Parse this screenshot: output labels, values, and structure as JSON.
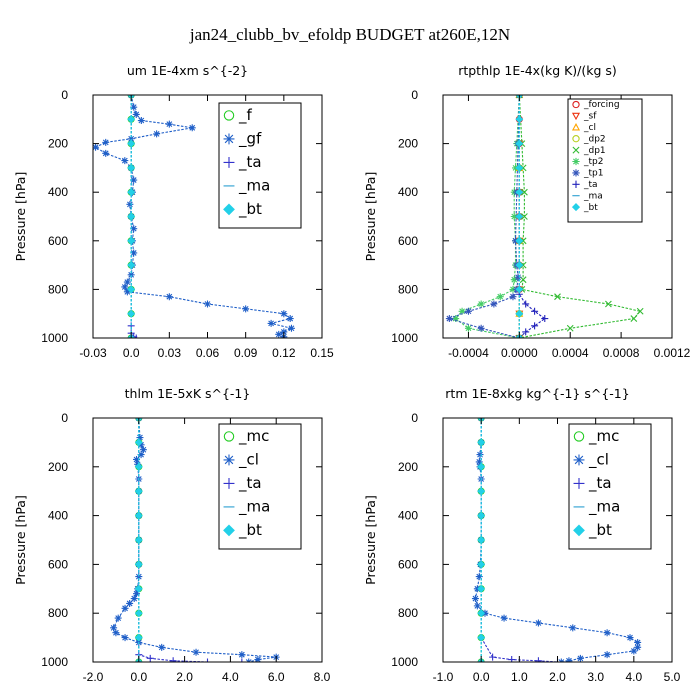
{
  "title": "jan24_clubb_bv_efoldp  BUDGET at260E,12N",
  "chart_data": [
    {
      "type": "line",
      "title": "um   1E-4xm s^{-2}",
      "ylabel": "Pressure [hPa]",
      "xlim": [
        -0.03,
        0.15
      ],
      "ylim": [
        1000,
        0
      ],
      "xticks": [
        "-0.03",
        "0.0",
        "0.03",
        "0.06",
        "0.09",
        "0.12",
        "0.15"
      ],
      "xtick_values": [
        -0.03,
        0,
        0.03,
        0.06,
        0.09,
        0.12,
        0.15
      ],
      "yticks": [
        "0",
        "200",
        "400",
        "600",
        "800",
        "1000"
      ],
      "ytick_values": [
        0,
        200,
        400,
        600,
        800,
        1000
      ],
      "legend": [
        "_f",
        "_gf",
        "_ta",
        "_ma",
        "_bt"
      ],
      "series": [
        {
          "name": "_f",
          "color": "#22cc22",
          "marker": "o",
          "x": [
            0,
            0,
            0,
            0,
            0,
            0,
            0,
            0,
            0,
            0,
            0
          ],
          "y": [
            0,
            100,
            200,
            300,
            400,
            500,
            600,
            700,
            800,
            900,
            1000
          ]
        },
        {
          "name": "_gf",
          "color": "#1f5fc8",
          "marker": "star",
          "x": [
            0,
            0.002,
            0.004,
            0.008,
            0.03,
            0.048,
            0.02,
            0.0,
            -0.02,
            -0.028,
            -0.02,
            -0.005,
            0.0,
            0.002,
            0.001,
            -0.001,
            0.0,
            0.002,
            0.001,
            0.002,
            0.001,
            0.0,
            -0.003,
            -0.005,
            -0.003,
            0.03,
            0.06,
            0.09,
            0.12,
            0.125,
            0.11,
            0.126,
            0.12,
            0.116,
            0.12
          ],
          "y": [
            0,
            50,
            80,
            105,
            120,
            135,
            160,
            180,
            195,
            215,
            240,
            270,
            300,
            350,
            400,
            450,
            500,
            550,
            600,
            650,
            700,
            740,
            770,
            790,
            810,
            830,
            860,
            880,
            900,
            920,
            940,
            960,
            975,
            985,
            995
          ]
        },
        {
          "name": "_ta",
          "color": "#3333cc",
          "marker": "+",
          "x": [
            0,
            0,
            0,
            0,
            0,
            0,
            0,
            0,
            0.002,
            0.004
          ],
          "y": [
            0,
            200,
            400,
            600,
            800,
            900,
            950,
            980,
            995,
            1000
          ]
        },
        {
          "name": "_ma",
          "color": "#2a9fd0",
          "marker": "dash",
          "x": [
            0,
            0,
            0,
            0,
            0,
            0,
            0
          ],
          "y": [
            0,
            200,
            400,
            600,
            800,
            900,
            1000
          ]
        },
        {
          "name": "_bt",
          "color": "#22d0e8",
          "marker": "diamond",
          "x": [
            0,
            0,
            0,
            0,
            0,
            0,
            0,
            0,
            0,
            0,
            0
          ],
          "y": [
            0,
            100,
            200,
            300,
            400,
            500,
            600,
            700,
            800,
            900,
            1000
          ]
        }
      ]
    },
    {
      "type": "line",
      "title": "rtpthlp   1E-4x(kg K)/(kg s)",
      "ylabel": "Pressure [hPa]",
      "xlim": [
        -0.0006,
        0.0012
      ],
      "ylim": [
        1000,
        0
      ],
      "xticks": [
        "-0.0004",
        "0.0000",
        "0.0004",
        "0.0008",
        "0.0012"
      ],
      "xtick_values": [
        -0.0004,
        0,
        0.0004,
        0.0008,
        0.0012
      ],
      "yticks": [
        "0",
        "200",
        "400",
        "600",
        "800",
        "1000"
      ],
      "ytick_values": [
        0,
        200,
        400,
        600,
        800,
        1000
      ],
      "legend": [
        "_forcing",
        "_sf",
        "_cl",
        "_dp2",
        "_dp1",
        "_tp2",
        "_tp1",
        "_ta",
        "_ma",
        "_bt"
      ],
      "series": [
        {
          "name": "_forcing",
          "color": "#dd2222",
          "marker": "o",
          "x": [
            0,
            0,
            0,
            0,
            0,
            0,
            0,
            0,
            0,
            0,
            0
          ],
          "y": [
            0,
            100,
            200,
            300,
            400,
            500,
            600,
            700,
            800,
            900,
            1000
          ]
        },
        {
          "name": "_sf",
          "color": "#ee3311",
          "marker": "v",
          "x": [
            0,
            0,
            0,
            0,
            0,
            0,
            0
          ],
          "y": [
            0,
            200,
            400,
            600,
            800,
            900,
            1000
          ]
        },
        {
          "name": "_cl",
          "color": "#ffa500",
          "marker": "^",
          "x": [
            0,
            0,
            0,
            0,
            0
          ],
          "y": [
            0,
            300,
            600,
            900,
            1000
          ]
        },
        {
          "name": "_dp2",
          "color": "#b8d020",
          "marker": "o",
          "x": [
            0,
            0,
            0,
            0,
            0
          ],
          "y": [
            0,
            300,
            600,
            900,
            1000
          ]
        },
        {
          "name": "_dp1",
          "color": "#33bb33",
          "marker": "x",
          "x": [
            0,
            2e-05,
            3e-05,
            4e-05,
            4e-05,
            3e-05,
            3e-05,
            3e-05,
            2e-05,
            0.0003,
            0.0007,
            0.00095,
            0.0009,
            0.0004,
            0.0
          ],
          "y": [
            0,
            200,
            300,
            400,
            500,
            600,
            700,
            760,
            800,
            830,
            860,
            890,
            920,
            960,
            1000
          ]
        },
        {
          "name": "_tp2",
          "color": "#44cc66",
          "marker": "star",
          "x": [
            0,
            -2e-05,
            -3e-05,
            -4e-05,
            -4e-05,
            -3e-05,
            -3e-05,
            -4e-05,
            -5e-05,
            -0.00015,
            -0.0003,
            -0.00045,
            -0.0005,
            -0.0004,
            0.0
          ],
          "y": [
            0,
            200,
            300,
            400,
            500,
            600,
            700,
            760,
            800,
            830,
            860,
            890,
            920,
            960,
            1000
          ]
        },
        {
          "name": "_tp1",
          "color": "#3355bb",
          "marker": "star",
          "x": [
            0,
            -1e-05,
            -2e-05,
            -3e-05,
            -2e-05,
            -1e-05,
            -2e-05,
            -5e-05,
            -0.0002,
            -0.0004,
            -0.00055,
            -0.0003,
            0.0
          ],
          "y": [
            0,
            200,
            400,
            600,
            700,
            750,
            800,
            830,
            860,
            890,
            920,
            960,
            1000
          ]
        },
        {
          "name": "_ta",
          "color": "#2222bb",
          "marker": "+",
          "x": [
            0,
            0,
            0,
            0,
            5e-05,
            0.00012,
            0.0002,
            0.00012,
            5e-05,
            0.0
          ],
          "y": [
            0,
            400,
            700,
            820,
            860,
            890,
            920,
            950,
            975,
            1000
          ]
        },
        {
          "name": "_ma",
          "color": "#2a9fd0",
          "marker": "dash",
          "x": [
            0,
            0,
            0,
            0,
            0
          ],
          "y": [
            0,
            300,
            600,
            900,
            1000
          ]
        },
        {
          "name": "_bt",
          "color": "#22d0e8",
          "marker": "diamond",
          "x": [
            0,
            0,
            0,
            0,
            0,
            0,
            0,
            0,
            0,
            0,
            0
          ],
          "y": [
            0,
            100,
            200,
            300,
            400,
            500,
            600,
            700,
            800,
            900,
            1000
          ]
        }
      ]
    },
    {
      "type": "line",
      "title": "thlm   1E-5xK s^{-1}",
      "ylabel": "Pressure [hPa]",
      "xlim": [
        -2.0,
        8.0
      ],
      "ylim": [
        1000,
        0
      ],
      "xticks": [
        "-2.0",
        "0.0",
        "2.0",
        "4.0",
        "6.0",
        "8.0"
      ],
      "xtick_values": [
        -2,
        0,
        2,
        4,
        6,
        8
      ],
      "yticks": [
        "0",
        "200",
        "400",
        "600",
        "800",
        "1000"
      ],
      "ytick_values": [
        0,
        200,
        400,
        600,
        800,
        1000
      ],
      "legend": [
        "_mc",
        "_cl",
        "_ta",
        "_ma",
        "_bt"
      ],
      "series": [
        {
          "name": "_mc",
          "color": "#22cc22",
          "marker": "o",
          "x": [
            0,
            0,
            0,
            0,
            0,
            0,
            0,
            0,
            0,
            0,
            0
          ],
          "y": [
            0,
            100,
            200,
            300,
            400,
            500,
            600,
            700,
            800,
            900,
            1000
          ]
        },
        {
          "name": "_cl",
          "color": "#1f5fc8",
          "marker": "star",
          "x": [
            0,
            0.05,
            0.1,
            0.2,
            0.1,
            -0.1,
            -0.05,
            0.0,
            0.0,
            0.0,
            0.0,
            0.0,
            0.0,
            -0.05,
            -0.1,
            -0.2,
            -0.4,
            -0.6,
            -0.9,
            -1.1,
            -1.0,
            -0.6,
            0.0,
            1.0,
            2.5,
            4.5,
            6.0,
            5.2,
            4.8
          ],
          "y": [
            0,
            80,
            110,
            130,
            150,
            170,
            190,
            250,
            300,
            400,
            500,
            600,
            650,
            700,
            720,
            740,
            760,
            780,
            820,
            860,
            880,
            900,
            920,
            940,
            960,
            970,
            980,
            990,
            1000
          ]
        },
        {
          "name": "_ta",
          "color": "#3333cc",
          "marker": "+",
          "x": [
            0,
            0,
            0,
            0,
            0,
            0.5,
            1.5,
            3.0,
            4.5
          ],
          "y": [
            0,
            300,
            600,
            900,
            970,
            985,
            995,
            1000,
            1000
          ]
        },
        {
          "name": "_ma",
          "color": "#2a9fd0",
          "marker": "dash",
          "x": [
            0,
            0,
            0,
            0,
            0
          ],
          "y": [
            0,
            300,
            600,
            900,
            1000
          ]
        },
        {
          "name": "_bt",
          "color": "#22d0e8",
          "marker": "diamond",
          "x": [
            0,
            0,
            0,
            0,
            0,
            0,
            0,
            0,
            0,
            0,
            0
          ],
          "y": [
            0,
            100,
            200,
            300,
            400,
            500,
            600,
            700,
            800,
            900,
            1000
          ]
        }
      ]
    },
    {
      "type": "line",
      "title": "rtm   1E-8xkg kg^{-1} s^{-1}",
      "ylabel": "Pressure [hPa]",
      "xlim": [
        -1.0,
        5.0
      ],
      "ylim": [
        1000,
        0
      ],
      "xticks": [
        "-1.0",
        "0.0",
        "1.0",
        "2.0",
        "3.0",
        "4.0",
        "5.0"
      ],
      "xtick_values": [
        -1,
        0,
        1,
        2,
        3,
        4,
        5
      ],
      "yticks": [
        "0",
        "200",
        "400",
        "600",
        "800",
        "1000"
      ],
      "ytick_values": [
        0,
        200,
        400,
        600,
        800,
        1000
      ],
      "legend": [
        "_mc",
        "_cl",
        "_ta",
        "_ma",
        "_bt"
      ],
      "series": [
        {
          "name": "_mc",
          "color": "#22cc22",
          "marker": "o",
          "x": [
            0,
            0,
            0,
            0,
            0,
            0,
            0,
            0,
            0,
            0,
            0
          ],
          "y": [
            0,
            100,
            200,
            300,
            400,
            500,
            600,
            700,
            800,
            900,
            1000
          ]
        },
        {
          "name": "_cl",
          "color": "#1f5fc8",
          "marker": "star",
          "x": [
            0,
            0.0,
            -0.03,
            -0.05,
            -0.03,
            0.0,
            0.0,
            0.0,
            -0.02,
            -0.05,
            -0.1,
            -0.15,
            -0.1,
            0.1,
            0.6,
            1.5,
            2.4,
            3.3,
            3.9,
            4.1,
            4.1,
            4.0,
            3.3,
            2.6,
            2.3,
            2.1
          ],
          "y": [
            0,
            100,
            150,
            180,
            200,
            250,
            400,
            500,
            600,
            650,
            700,
            740,
            770,
            800,
            820,
            840,
            860,
            880,
            900,
            920,
            940,
            955,
            970,
            985,
            995,
            1000
          ]
        },
        {
          "name": "_ta",
          "color": "#3333cc",
          "marker": "+",
          "x": [
            0,
            0,
            0,
            0,
            0.3,
            0.8,
            1.5,
            2.0
          ],
          "y": [
            0,
            300,
            600,
            900,
            980,
            990,
            995,
            1000
          ]
        },
        {
          "name": "_ma",
          "color": "#2a9fd0",
          "marker": "dash",
          "x": [
            0,
            0,
            0,
            0,
            0
          ],
          "y": [
            0,
            300,
            600,
            900,
            1000
          ]
        },
        {
          "name": "_bt",
          "color": "#22d0e8",
          "marker": "diamond",
          "x": [
            0,
            0,
            0,
            0,
            0,
            0,
            0,
            0,
            0,
            0,
            0
          ],
          "y": [
            0,
            100,
            200,
            300,
            400,
            500,
            600,
            700,
            800,
            900,
            1000
          ]
        }
      ]
    }
  ]
}
